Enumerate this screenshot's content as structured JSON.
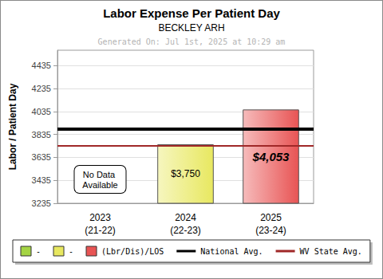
{
  "chart_data": {
    "type": "bar",
    "title": "Labor Expense Per Patient Day",
    "subtitle": "BECKLEY ARH",
    "generated": "Generated On: Jul 1st, 2025 at 10:29 am",
    "y_label": "Labor / Patient Day",
    "categories": [
      "2023\n(21-22)",
      "2024\n(22-23)",
      "2025\n(23-24)"
    ],
    "series": [
      {
        "name": "-",
        "color": "#a4d444",
        "values": [
          null,
          null,
          null
        ],
        "value_labels": [
          null,
          null,
          null
        ]
      },
      {
        "name": "-",
        "color": "#e8e860",
        "values": [
          null,
          3750,
          null
        ],
        "value_labels": [
          null,
          "$3,750",
          null
        ]
      },
      {
        "name": "(Lbr/Dis)/LOS",
        "color": "#e85454",
        "values": [
          null,
          null,
          4053
        ],
        "value_labels": [
          null,
          null,
          "$4,053"
        ]
      }
    ],
    "reference_lines": [
      {
        "name": "National Avg.",
        "value": 3884,
        "color": "#000000"
      },
      {
        "name": "WV State Avg.",
        "value": 3738,
        "color": "#a02828"
      }
    ],
    "annotations": [
      {
        "text": "No Data Available",
        "category": "2023\n(21-22)"
      }
    ],
    "ylim": [
      3235,
      4570
    ],
    "yticks": [
      3235,
      3435,
      3635,
      3835,
      4035,
      4235,
      4435
    ],
    "grid": true,
    "data_labels": true,
    "legend": "bottom"
  }
}
